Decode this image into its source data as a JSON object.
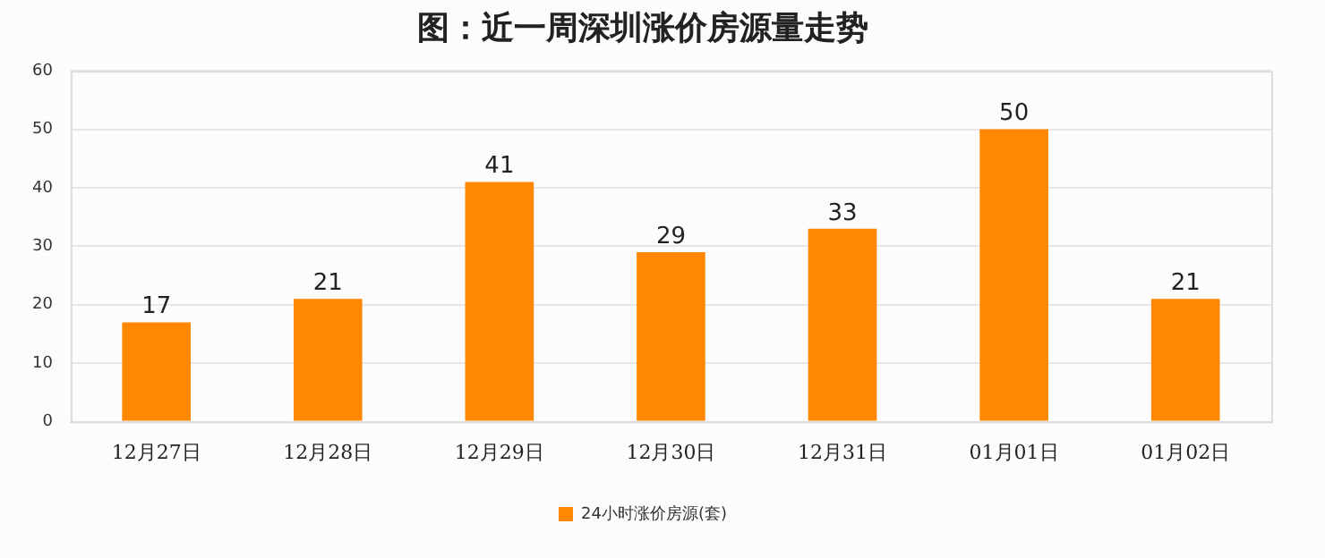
{
  "chart_data": {
    "type": "bar",
    "title": "图：近一周深圳涨价房源量走势",
    "categories": [
      "12月27日",
      "12月28日",
      "12月29日",
      "12月30日",
      "12月31日",
      "01月01日",
      "01月02日"
    ],
    "series": [
      {
        "name": "24小时涨价房源(套)",
        "color": "#ff8800",
        "values": [
          17,
          21,
          41,
          29,
          33,
          50,
          21
        ]
      }
    ],
    "ylim": [
      0,
      60
    ],
    "yticks": [
      0,
      10,
      20,
      30,
      40,
      50,
      60
    ],
    "grid": "y",
    "legend": "bottom",
    "data_labels": true
  }
}
